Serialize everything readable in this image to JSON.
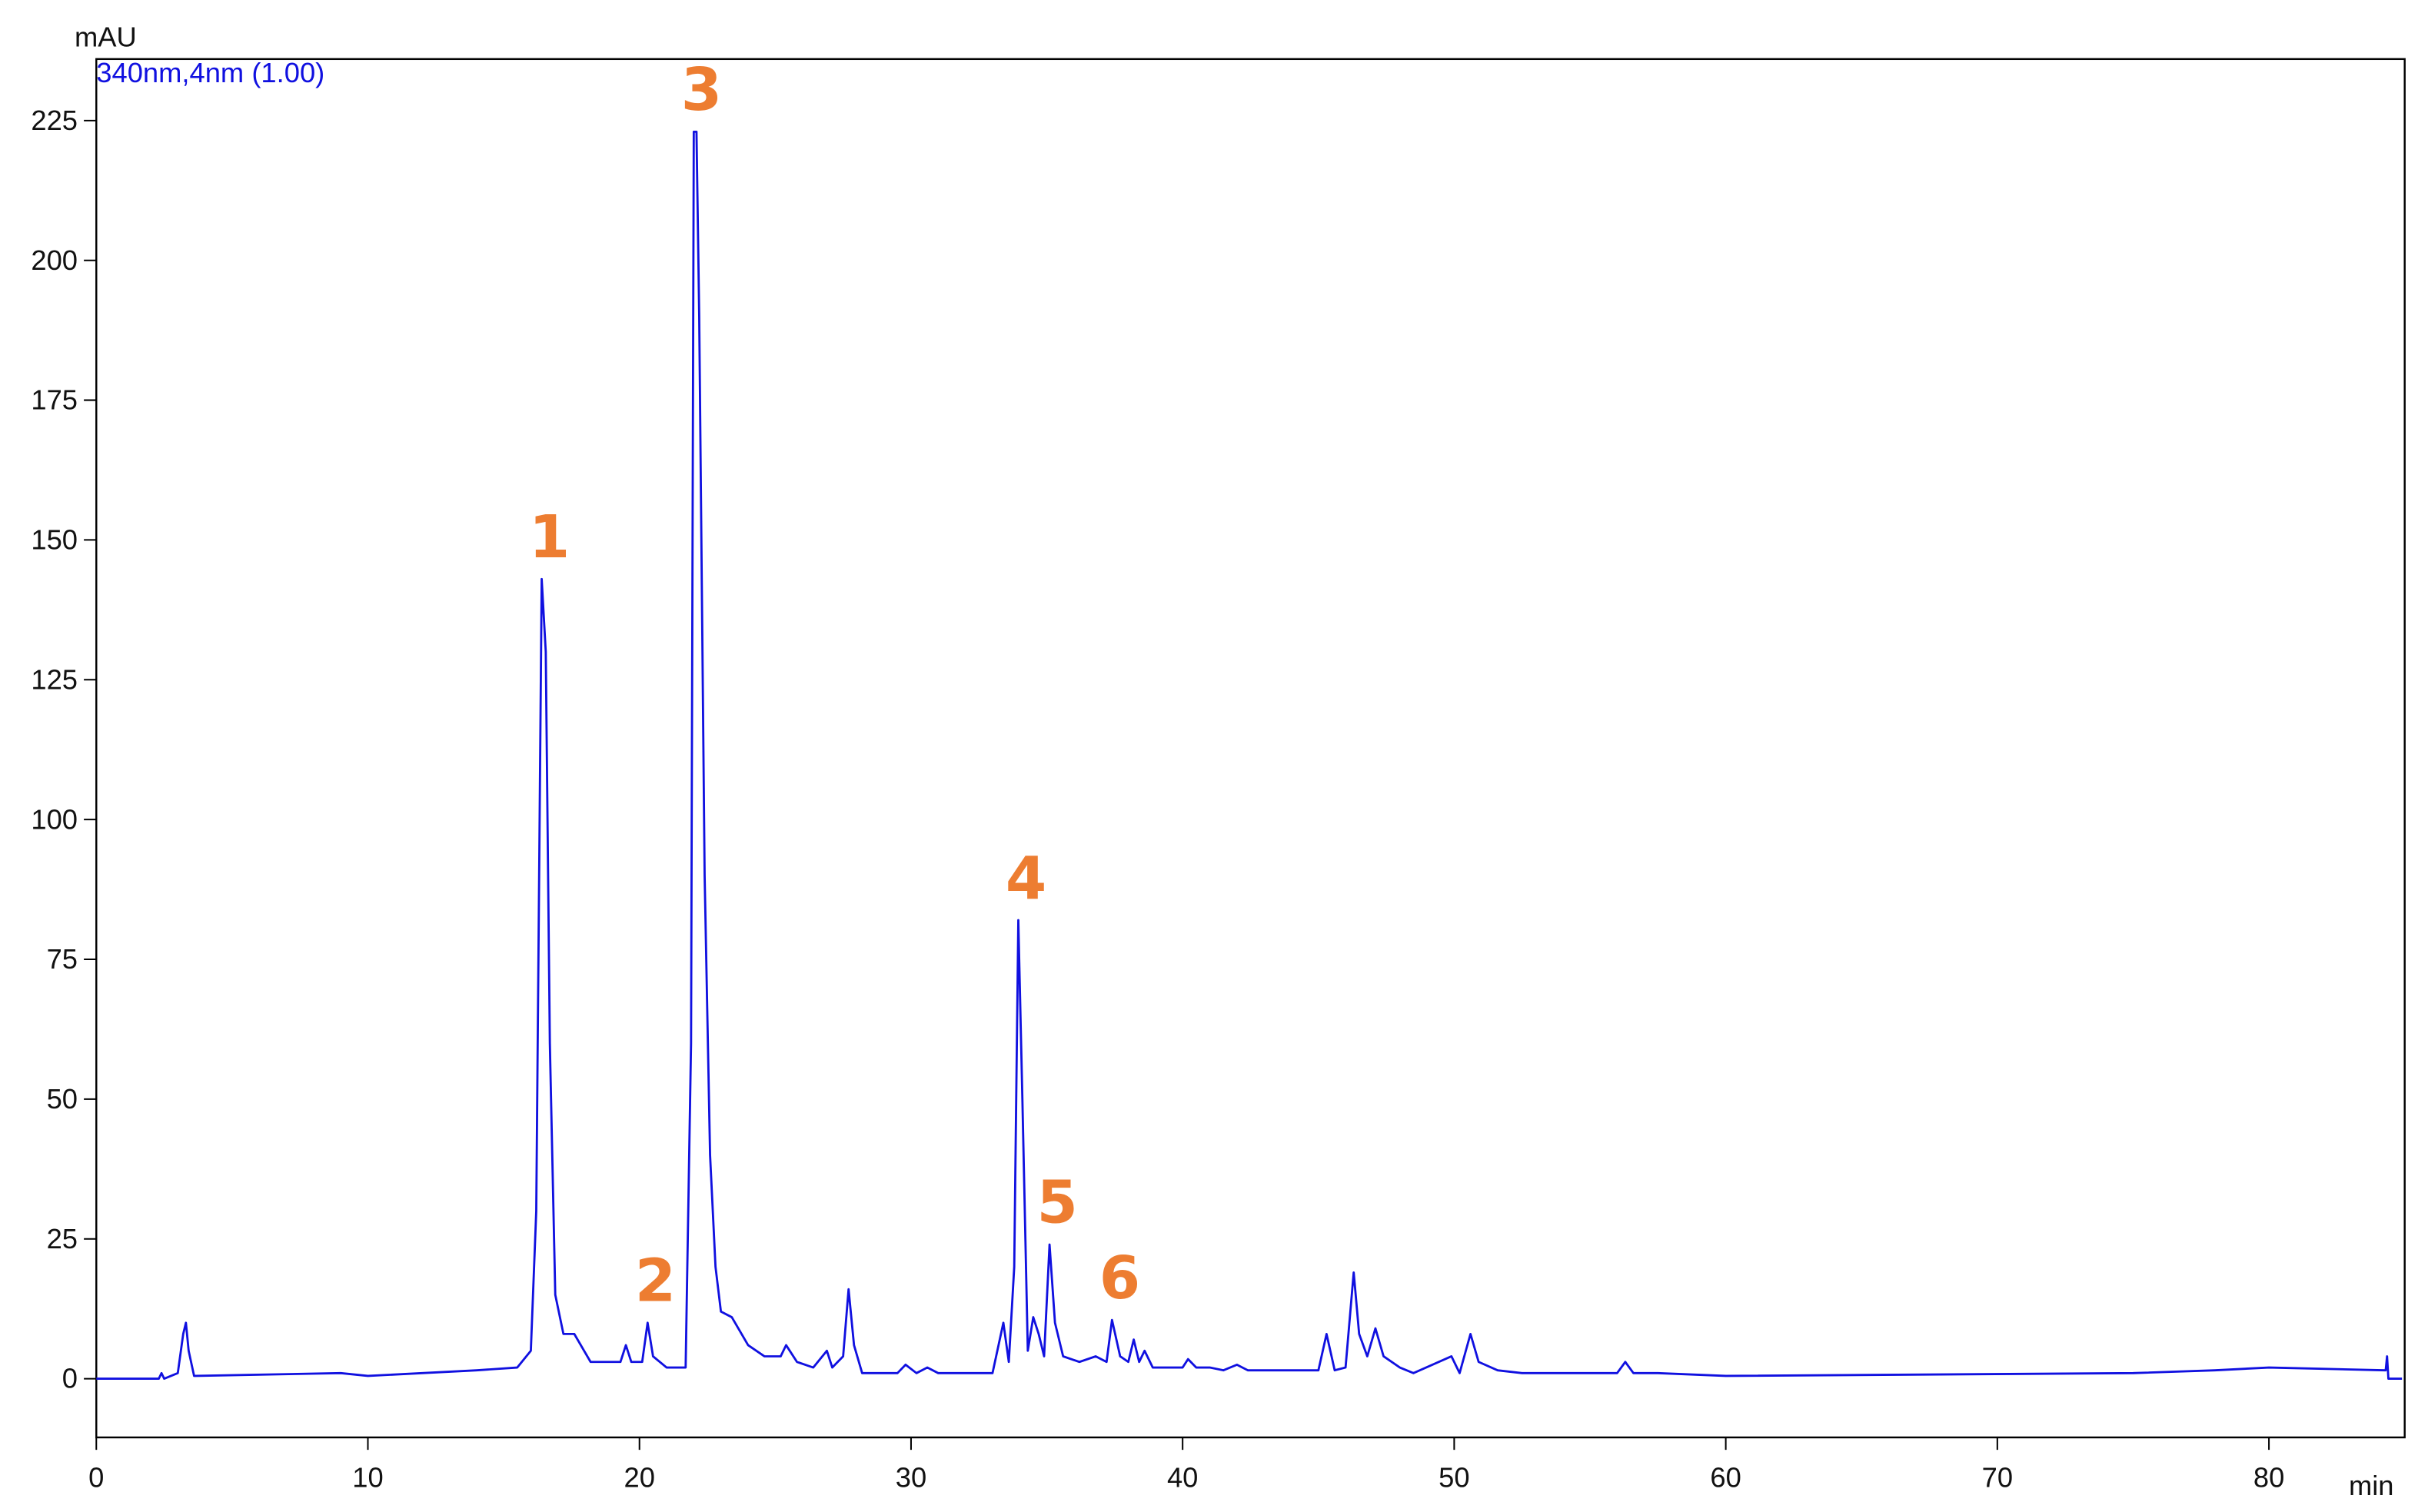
{
  "chart_data": {
    "type": "line",
    "ylabel": "mAU",
    "xlabel": "min",
    "xlim": [
      0,
      85
    ],
    "ylim": [
      -10.5,
      236
    ],
    "xticks": [
      0,
      10,
      20,
      30,
      40,
      50,
      60,
      70,
      80
    ],
    "yticks": [
      0,
      25,
      50,
      75,
      100,
      125,
      150,
      175,
      200,
      225
    ],
    "x": [
      0,
      2.3,
      2.4,
      2.5,
      3.0,
      3.2,
      3.3,
      3.4,
      3.6,
      9,
      10,
      12,
      14,
      15.5,
      16.0,
      16.2,
      16.4,
      16.55,
      16.7,
      16.9,
      17.2,
      17.6,
      18.2,
      19.3,
      19.5,
      19.7,
      20.1,
      20.3,
      20.5,
      21.0,
      21.7,
      21.9,
      22.0,
      22.1,
      22.2,
      22.4,
      22.6,
      22.8,
      23.0,
      23.4,
      24.0,
      24.6,
      25.2,
      25.4,
      25.8,
      26.4,
      26.9,
      27.1,
      27.5,
      27.7,
      27.9,
      28.2,
      29.5,
      29.8,
      30.2,
      30.6,
      31,
      33,
      33.4,
      33.6,
      33.8,
      33.95,
      34.1,
      34.3,
      34.5,
      34.7,
      34.9,
      35.1,
      35.3,
      35.6,
      36.2,
      36.8,
      37.2,
      37.4,
      37.7,
      38.0,
      38.2,
      38.4,
      38.6,
      38.9,
      40,
      40.2,
      40.5,
      41,
      41.5,
      42,
      42.4,
      45,
      45.3,
      45.6,
      46.0,
      46.3,
      46.5,
      46.8,
      47.1,
      47.4,
      48,
      48.5,
      49.9,
      50.2,
      50.6,
      50.9,
      51.6,
      52.5,
      56,
      56.3,
      56.6,
      57.5,
      60,
      75,
      78,
      80,
      84.3,
      84.35,
      84.4,
      84.9
    ],
    "series": [
      {
        "name": "340nm,4nm (1.00)",
        "color": "#1010e0",
        "values": [
          0,
          0,
          1,
          0,
          1,
          8,
          10,
          5,
          0.5,
          1,
          0.5,
          1,
          1.5,
          2,
          5,
          30,
          143,
          130,
          60,
          15,
          8,
          8,
          3,
          3,
          6,
          3,
          3,
          10,
          4,
          2,
          2,
          60,
          223,
          223,
          190,
          90,
          40,
          20,
          12,
          11,
          6,
          4,
          4,
          6,
          3,
          2,
          5,
          2,
          4,
          16,
          6,
          1,
          1,
          2.5,
          1,
          2,
          1,
          1,
          10,
          3,
          20,
          82,
          50,
          5,
          11,
          8,
          4,
          24,
          10,
          4,
          3,
          4,
          3,
          10.5,
          4,
          3,
          7,
          3,
          5,
          2,
          2,
          3.5,
          2,
          2,
          1.5,
          2.5,
          1.5,
          1.5,
          8,
          1.5,
          2,
          19,
          8,
          4,
          9,
          4,
          2,
          1,
          4,
          1,
          8,
          3,
          1.5,
          1,
          1,
          3,
          1,
          1,
          0.5,
          1,
          1.5,
          2,
          1.5,
          4,
          0,
          0
        ]
      }
    ],
    "annotations": [
      {
        "text": "1",
        "x": 16.4,
        "y": 143
      },
      {
        "text": "2",
        "x": 20.3,
        "y": 10
      },
      {
        "text": "3",
        "x": 22.0,
        "y": 223
      },
      {
        "text": "4",
        "x": 33.95,
        "y": 82
      },
      {
        "text": "5",
        "x": 35.1,
        "y": 24
      },
      {
        "text": "6",
        "x": 37.4,
        "y": 10.5
      }
    ],
    "annotation_color": "#ed7d31"
  }
}
